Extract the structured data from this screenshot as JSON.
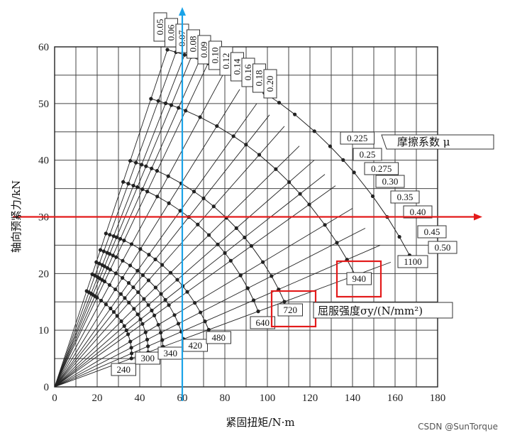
{
  "chart_data": {
    "type": "line",
    "ylabel": "轴向预紧力/kN",
    "xlabel": "紧固扭矩/N·m",
    "xlim": [
      0,
      180
    ],
    "ylim": [
      0,
      60
    ],
    "xticks": [
      "0",
      "20",
      "40",
      "60",
      "80",
      "100",
      "120",
      "140",
      "160",
      "180"
    ],
    "yticks": [
      "0",
      "10",
      "20",
      "30",
      "40",
      "50",
      "60"
    ],
    "grid": true,
    "mu_title": "摩擦系数 μ",
    "yield_title": "屈服强度σy/(N/mm²)",
    "mu_lines": [
      {
        "label": "0.05",
        "end": [
          53,
          59.5
        ]
      },
      {
        "label": "0.06",
        "end": [
          57,
          59
        ]
      },
      {
        "label": "0.07",
        "end": [
          61,
          58.5
        ]
      },
      {
        "label": "0.08",
        "end": [
          64,
          58
        ]
      },
      {
        "label": "0.09",
        "end": [
          68,
          57.5
        ]
      },
      {
        "label": "0.10",
        "end": [
          72,
          57
        ]
      },
      {
        "label": "0.12",
        "end": [
          79,
          55
        ]
      },
      {
        "label": "0.14",
        "end": [
          87,
          52.5
        ]
      },
      {
        "label": "0.16",
        "end": [
          95,
          50
        ]
      },
      {
        "label": "0.18",
        "end": [
          101,
          48
        ]
      },
      {
        "label": "0.20",
        "end": [
          108,
          46
        ]
      },
      {
        "label": "0.225",
        "end": [
          115,
          42.5
        ]
      },
      {
        "label": "0.25",
        "end": [
          122,
          40
        ]
      },
      {
        "label": "0.275",
        "end": [
          127,
          37.5
        ]
      },
      {
        "label": "0.30",
        "end": [
          132,
          35.5
        ]
      },
      {
        "label": "0.35",
        "end": [
          140,
          31.5
        ]
      },
      {
        "label": "0.40",
        "end": [
          146,
          28
        ]
      },
      {
        "label": "0.45",
        "end": [
          153,
          25
        ]
      },
      {
        "label": "0.50",
        "end": [
          158,
          22
        ]
      }
    ],
    "yield_labels": [
      "240",
      "300",
      "340",
      "420",
      "480",
      "640",
      "720",
      "940",
      "1100"
    ],
    "yield_arcs": [
      {
        "value": "240",
        "mu005": [
          31,
          13.5
        ],
        "mu050": [
          35,
          6
        ]
      },
      {
        "value": "300",
        "mu005": [
          36,
          16
        ],
        "mu050": [
          43,
          7
        ]
      },
      {
        "value": "340",
        "mu005": [
          39,
          18
        ],
        "mu050": [
          50,
          8
        ]
      },
      {
        "value": "420",
        "mu005": [
          42,
          20
        ],
        "mu050": [
          60,
          9
        ]
      },
      {
        "value": "480",
        "mu005": [
          45,
          23
        ],
        "mu050": [
          72,
          10.5
        ]
      },
      {
        "value": "640",
        "mu005": [
          46,
          34
        ],
        "mu050": [
          95,
          14
        ]
      },
      {
        "value": "720",
        "mu005": [
          48,
          38
        ],
        "mu050": [
          107,
          16
        ]
      },
      {
        "value": "940",
        "mu005": [
          44,
          51
        ],
        "mu050": [
          140,
          21
        ]
      },
      {
        "value": "1100",
        "mu005": [
          53,
          59.5
        ],
        "mu050": [
          165,
          25
        ]
      }
    ],
    "highlights": {
      "vertical_x": 60,
      "horizontal_y": 30,
      "boxed": [
        "940",
        "720"
      ]
    },
    "watermark": "CSDN @SunTorque"
  }
}
